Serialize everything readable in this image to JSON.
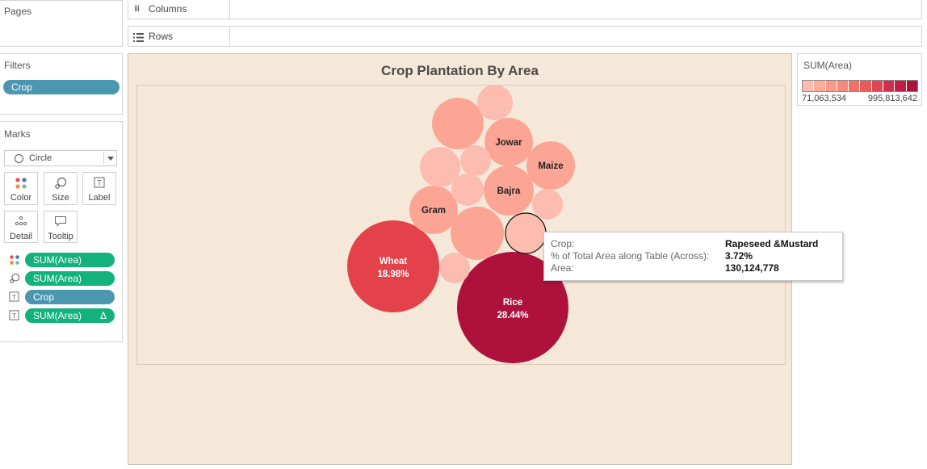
{
  "pages": {
    "title": "Pages"
  },
  "filters": {
    "title": "Filters",
    "pills": [
      {
        "label": "Crop"
      }
    ]
  },
  "marks": {
    "title": "Marks",
    "type_selected": "Circle",
    "buttons": [
      {
        "label": "Color",
        "icon": "color-dots-icon"
      },
      {
        "label": "Size",
        "icon": "size-icon"
      },
      {
        "label": "Label",
        "icon": "label-icon"
      },
      {
        "label": "Detail",
        "icon": "detail-icon"
      },
      {
        "label": "Tooltip",
        "icon": "tooltip-icon"
      }
    ],
    "fields": [
      {
        "label": "SUM(Area)",
        "icon": "color-dots-icon",
        "kind": "measure"
      },
      {
        "label": "SUM(Area)",
        "icon": "size-icon",
        "kind": "measure"
      },
      {
        "label": "Crop",
        "icon": "label-icon",
        "kind": "dimension"
      },
      {
        "label": "SUM(Area)",
        "icon": "label-icon",
        "kind": "measure",
        "delta": "Δ"
      }
    ]
  },
  "shelves": {
    "columns": "Columns",
    "rows": "Rows"
  },
  "legend": {
    "title": "SUM(Area)",
    "min": "71,063,534",
    "max": "995,813,642",
    "colors": [
      "#fdbcb0",
      "#fcab9d",
      "#f99a89",
      "#f6887a",
      "#f07167",
      "#e85a5c",
      "#dd4652",
      "#cf3049",
      "#c11d44",
      "#ae123c"
    ]
  },
  "tooltip": {
    "rows": [
      {
        "key": "Crop:",
        "value": "Rapeseed &Mustard"
      },
      {
        "key": "% of Total Area along Table (Across):",
        "value": "3.72%"
      },
      {
        "key": "Area:",
        "value": "130,124,778"
      }
    ]
  },
  "chart_data": {
    "type": "packed-bubble",
    "title": "Crop Plantation By Area",
    "measure": "SUM(Area)",
    "bubbles": [
      {
        "label": "Rice",
        "pct": "28.44%"
      },
      {
        "label": "Wheat",
        "pct": "18.98%"
      },
      {
        "label": "Gram",
        "pct": ""
      },
      {
        "label": "Bajra",
        "pct": ""
      },
      {
        "label": "Jowar",
        "pct": ""
      },
      {
        "label": "Maize",
        "pct": ""
      },
      {
        "label": "Rapeseed &Mustard",
        "pct": "3.72%",
        "value": 130124778,
        "highlighted": true,
        "show_label": false
      },
      {
        "label": "",
        "pct": ""
      },
      {
        "label": "",
        "pct": ""
      },
      {
        "label": "",
        "pct": ""
      },
      {
        "label": "",
        "pct": ""
      },
      {
        "label": "",
        "pct": ""
      },
      {
        "label": "",
        "pct": ""
      },
      {
        "label": "",
        "pct": ""
      },
      {
        "label": "",
        "pct": ""
      }
    ]
  }
}
